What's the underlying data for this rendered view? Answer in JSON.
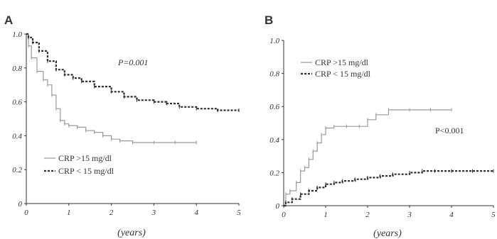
{
  "chart_data": [
    {
      "type": "line",
      "panel": "A",
      "xlabel": "(years)",
      "ylabel": "",
      "xlim": [
        0,
        5
      ],
      "ylim": [
        0,
        1.0
      ],
      "x_ticks": [
        "0",
        "1",
        "2",
        "3",
        "4",
        "5"
      ],
      "y_ticks": [
        "0",
        "0.2",
        "0.4",
        "0.6",
        "0.8",
        "1.0"
      ],
      "annotation": "P=0.001",
      "legend_placement": "bottom-left",
      "series": [
        {
          "name": "CRP >15 mg/dl",
          "color": "#9a9a9a",
          "style": "solid-thin",
          "x": [
            0,
            0.05,
            0.12,
            0.25,
            0.4,
            0.5,
            0.6,
            0.7,
            0.8,
            0.9,
            1.0,
            1.2,
            1.4,
            1.6,
            1.8,
            2.0,
            2.2,
            2.5,
            3.0,
            3.5,
            4.0
          ],
          "y": [
            1.0,
            0.93,
            0.86,
            0.78,
            0.73,
            0.7,
            0.64,
            0.56,
            0.49,
            0.47,
            0.46,
            0.45,
            0.43,
            0.42,
            0.4,
            0.38,
            0.37,
            0.36,
            0.36,
            0.36,
            0.36
          ]
        },
        {
          "name": "CRP < 15 mg/dl",
          "color": "#2e2e2e",
          "style": "dashed-thick",
          "x": [
            0,
            0.05,
            0.15,
            0.3,
            0.5,
            0.7,
            0.9,
            1.1,
            1.3,
            1.6,
            2.0,
            2.3,
            2.6,
            3.0,
            3.3,
            3.6,
            4.0,
            4.5,
            5.0
          ],
          "y": [
            1.0,
            0.98,
            0.95,
            0.9,
            0.84,
            0.79,
            0.76,
            0.74,
            0.72,
            0.69,
            0.66,
            0.63,
            0.61,
            0.6,
            0.59,
            0.57,
            0.56,
            0.55,
            0.55
          ]
        }
      ]
    },
    {
      "type": "line",
      "panel": "B",
      "xlabel": "(years)",
      "ylabel": "",
      "xlim": [
        0,
        5
      ],
      "ylim": [
        0,
        1.0
      ],
      "x_ticks": [
        "0",
        "1",
        "2",
        "3",
        "4",
        "5"
      ],
      "y_ticks": [
        "0",
        "0.2",
        "0.4",
        "0.6",
        "0.8",
        "1.0"
      ],
      "annotation": "P<0.001",
      "legend_placement": "top-left",
      "series": [
        {
          "name": "CRP >15 mg/dl",
          "color": "#9a9a9a",
          "style": "solid-thin",
          "x": [
            0,
            0.05,
            0.15,
            0.3,
            0.4,
            0.5,
            0.6,
            0.7,
            0.8,
            0.9,
            1.0,
            1.2,
            1.5,
            1.8,
            2.0,
            2.2,
            2.5,
            3.0,
            3.5,
            4.0
          ],
          "y": [
            0,
            0.07,
            0.09,
            0.14,
            0.21,
            0.23,
            0.28,
            0.33,
            0.38,
            0.43,
            0.47,
            0.48,
            0.48,
            0.48,
            0.52,
            0.55,
            0.58,
            0.58,
            0.58,
            0.58
          ]
        },
        {
          "name": "CRP < 15 mg/dl",
          "color": "#2e2e2e",
          "style": "dashed-thick",
          "x": [
            0,
            0.05,
            0.2,
            0.4,
            0.6,
            0.8,
            1.0,
            1.2,
            1.4,
            1.7,
            2.0,
            2.3,
            2.6,
            3.0,
            3.3,
            3.6,
            4.0,
            4.5,
            5.0
          ],
          "y": [
            0,
            0.02,
            0.04,
            0.07,
            0.09,
            0.11,
            0.13,
            0.14,
            0.15,
            0.16,
            0.17,
            0.18,
            0.19,
            0.2,
            0.21,
            0.21,
            0.21,
            0.21,
            0.21
          ]
        }
      ]
    }
  ]
}
